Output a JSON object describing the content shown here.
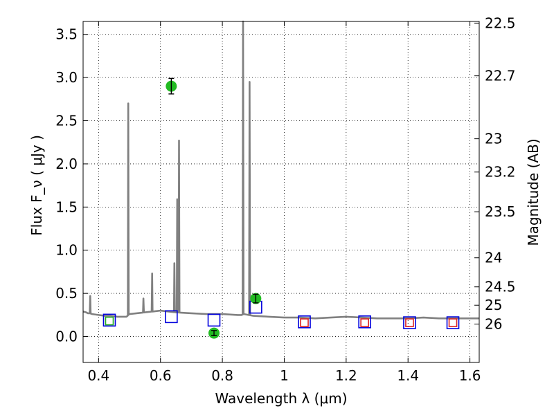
{
  "chart_data": {
    "type": "scatter",
    "xlabel": "Wavelength  λ (μm)",
    "ylabel": "Flux  F_ν  ( μJy )",
    "ylabel_right": "Magnitude (AB)",
    "xlim": [
      0.35,
      1.63
    ],
    "ylim": [
      -0.3,
      3.65
    ],
    "grid": true,
    "x_ticks": [
      0.4,
      0.6,
      0.8,
      1.0,
      1.2,
      1.4,
      1.6
    ],
    "x_tick_labels": [
      "0.4",
      "0.6",
      "0.8",
      "1",
      "1.2",
      "1.4",
      "1.6"
    ],
    "y_ticks": [
      0.0,
      0.5,
      1.0,
      1.5,
      2.0,
      2.5,
      3.0,
      3.5
    ],
    "y_tick_labels": [
      "0.0",
      "0.5",
      "1.0",
      "1.5",
      "2.0",
      "2.5",
      "3.0",
      "3.5"
    ],
    "mag_ticks": [
      22.5,
      22.7,
      23,
      23.2,
      23.5,
      24,
      24.5,
      25,
      26
    ],
    "mag_tick_labels": [
      "22.5",
      "22.7",
      "23",
      "23.2",
      "23.5",
      "24",
      "24.5",
      "25",
      "26"
    ],
    "colors": {
      "model": "#808080",
      "observed": "#22bb22",
      "model_box": "#0000dd",
      "red_box": "#dd2222",
      "green_box": "#22aa22"
    },
    "model_continuum": {
      "x": [
        0.35,
        0.36,
        0.365,
        0.37,
        0.38,
        0.4,
        0.42,
        0.44,
        0.46,
        0.48,
        0.49,
        0.5,
        0.55,
        0.6,
        0.65,
        0.7,
        0.75,
        0.8,
        0.85,
        0.862,
        0.87,
        0.9,
        0.95,
        1.0,
        1.05,
        1.1,
        1.15,
        1.2,
        1.25,
        1.3,
        1.35,
        1.4,
        1.45,
        1.5,
        1.55,
        1.6,
        1.63
      ],
      "y": [
        0.29,
        0.28,
        0.27,
        0.27,
        0.26,
        0.25,
        0.24,
        0.24,
        0.23,
        0.23,
        0.23,
        0.26,
        0.28,
        0.3,
        0.28,
        0.27,
        0.26,
        0.26,
        0.25,
        0.25,
        0.26,
        0.24,
        0.23,
        0.22,
        0.22,
        0.21,
        0.22,
        0.23,
        0.22,
        0.21,
        0.21,
        0.21,
        0.22,
        0.21,
        0.21,
        0.21,
        0.21
      ]
    },
    "model_lines": [
      {
        "x": 0.373,
        "y": 0.47
      },
      {
        "x": 0.496,
        "y": 2.7
      },
      {
        "x": 0.545,
        "y": 0.44
      },
      {
        "x": 0.573,
        "y": 0.73
      },
      {
        "x": 0.645,
        "y": 0.85
      },
      {
        "x": 0.654,
        "y": 1.59
      },
      {
        "x": 0.66,
        "y": 2.27
      },
      {
        "x": 0.867,
        "y": 3.65
      },
      {
        "x": 0.888,
        "y": 2.95
      }
    ],
    "observed_points": [
      {
        "x": 0.635,
        "y": 2.9,
        "err": 0.09
      },
      {
        "x": 0.773,
        "y": 0.04,
        "err": 0.03
      },
      {
        "x": 0.908,
        "y": 0.44,
        "err": 0.05
      }
    ],
    "model_boxes": [
      {
        "x": 0.435,
        "y": 0.19
      },
      {
        "x": 0.635,
        "y": 0.23
      },
      {
        "x": 0.773,
        "y": 0.19
      },
      {
        "x": 0.908,
        "y": 0.34
      },
      {
        "x": 1.065,
        "y": 0.17
      },
      {
        "x": 1.26,
        "y": 0.17
      },
      {
        "x": 1.405,
        "y": 0.16
      },
      {
        "x": 1.545,
        "y": 0.16
      }
    ],
    "red_boxes": [
      {
        "x": 1.065,
        "y": 0.16
      },
      {
        "x": 1.26,
        "y": 0.16
      },
      {
        "x": 1.405,
        "y": 0.16
      },
      {
        "x": 1.545,
        "y": 0.16
      }
    ],
    "green_boxes": [
      {
        "x": 0.435,
        "y": 0.18
      }
    ]
  }
}
